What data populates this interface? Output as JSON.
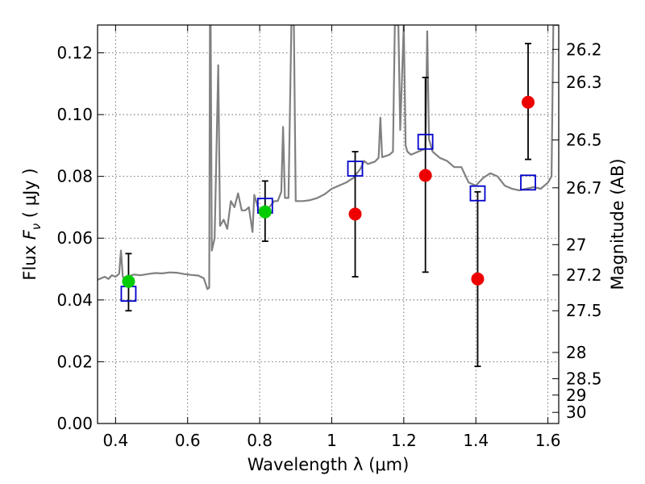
{
  "chart_data": {
    "type": "scatter",
    "xlabel": "Wavelength  λ (μm)",
    "ylabel": "Flux  F_ν  ( μJy )",
    "ylabel_parts": {
      "lead": "Flux ",
      "symbol": "F",
      "subscript": "ν",
      "units": " (  μJy )"
    },
    "y2label": "Magnitude (AB)",
    "xlim": [
      0.35,
      1.63
    ],
    "ylim": [
      0.0,
      0.129
    ],
    "grid": true,
    "x_ticks": [
      {
        "value": 0.4,
        "label": "0.4"
      },
      {
        "value": 0.6,
        "label": "0.6"
      },
      {
        "value": 0.8,
        "label": "0.8"
      },
      {
        "value": 1.0,
        "label": "1"
      },
      {
        "value": 1.2,
        "label": "1.2"
      },
      {
        "value": 1.4,
        "label": "1.4"
      },
      {
        "value": 1.6,
        "label": "1.6"
      }
    ],
    "y_ticks": [
      {
        "value": 0.0,
        "label": "0.00"
      },
      {
        "value": 0.02,
        "label": "0.02"
      },
      {
        "value": 0.04,
        "label": "0.04"
      },
      {
        "value": 0.06,
        "label": "0.06"
      },
      {
        "value": 0.08,
        "label": "0.08"
      },
      {
        "value": 0.1,
        "label": "0.10"
      },
      {
        "value": 0.12,
        "label": "0.12"
      }
    ],
    "y2_ticks": [
      {
        "label": "26.2",
        "flux": 0.1211
      },
      {
        "label": "26.3",
        "flux": 0.1104
      },
      {
        "label": "26.5",
        "flux": 0.0918
      },
      {
        "label": "26.7",
        "flux": 0.0763
      },
      {
        "label": "27",
        "flux": 0.0579
      },
      {
        "label": "27.2",
        "flux": 0.0481
      },
      {
        "label": "27.5",
        "flux": 0.0365
      },
      {
        "label": "28",
        "flux": 0.023
      },
      {
        "label": "28.5",
        "flux": 0.0145
      },
      {
        "label": "29",
        "flux": 0.0092
      },
      {
        "label": "30",
        "flux": 0.0036
      }
    ],
    "series": [
      {
        "kind": "spectrum",
        "color": "#808080",
        "points": [
          [
            0.35,
            0.0465
          ],
          [
            0.36,
            0.047
          ],
          [
            0.37,
            0.0475
          ],
          [
            0.38,
            0.0468
          ],
          [
            0.39,
            0.048
          ],
          [
            0.4,
            0.0475
          ],
          [
            0.41,
            0.0485
          ],
          [
            0.415,
            0.056
          ],
          [
            0.42,
            0.0475
          ],
          [
            0.43,
            0.046
          ],
          [
            0.44,
            0.0478
          ],
          [
            0.45,
            0.0482
          ],
          [
            0.47,
            0.048
          ],
          [
            0.49,
            0.0484
          ],
          [
            0.51,
            0.0487
          ],
          [
            0.53,
            0.0486
          ],
          [
            0.55,
            0.0489
          ],
          [
            0.57,
            0.0488
          ],
          [
            0.59,
            0.0484
          ],
          [
            0.61,
            0.0481
          ],
          [
            0.63,
            0.0479
          ],
          [
            0.645,
            0.047
          ],
          [
            0.655,
            0.0435
          ],
          [
            0.66,
            0.044
          ],
          [
            0.662,
            0.129
          ],
          [
            0.664,
            0.129
          ],
          [
            0.667,
            0.056
          ],
          [
            0.675,
            0.06
          ],
          [
            0.685,
            0.116
          ],
          [
            0.69,
            0.064
          ],
          [
            0.7,
            0.066
          ],
          [
            0.71,
            0.063
          ],
          [
            0.72,
            0.072
          ],
          [
            0.73,
            0.07
          ],
          [
            0.74,
            0.0745
          ],
          [
            0.75,
            0.069
          ],
          [
            0.76,
            0.069
          ],
          [
            0.77,
            0.07
          ],
          [
            0.78,
            0.062
          ],
          [
            0.785,
            0.074
          ],
          [
            0.8,
            0.068
          ],
          [
            0.82,
            0.069
          ],
          [
            0.84,
            0.072
          ],
          [
            0.85,
            0.072
          ],
          [
            0.86,
            0.075
          ],
          [
            0.865,
            0.096
          ],
          [
            0.87,
            0.073
          ],
          [
            0.88,
            0.073
          ],
          [
            0.888,
            0.129
          ],
          [
            0.895,
            0.129
          ],
          [
            0.9,
            0.072
          ],
          [
            0.92,
            0.072
          ],
          [
            0.94,
            0.0723
          ],
          [
            0.96,
            0.073
          ],
          [
            0.98,
            0.0742
          ],
          [
            1.0,
            0.076
          ],
          [
            1.02,
            0.077
          ],
          [
            1.04,
            0.078
          ],
          [
            1.06,
            0.0795
          ],
          [
            1.08,
            0.0825
          ],
          [
            1.09,
            0.085
          ],
          [
            1.1,
            0.084
          ],
          [
            1.12,
            0.0848
          ],
          [
            1.13,
            0.086
          ],
          [
            1.135,
            0.099
          ],
          [
            1.14,
            0.0862
          ],
          [
            1.16,
            0.087
          ],
          [
            1.17,
            0.088
          ],
          [
            1.175,
            0.129
          ],
          [
            1.185,
            0.129
          ],
          [
            1.19,
            0.095
          ],
          [
            1.2,
            0.129
          ],
          [
            1.205,
            0.09
          ],
          [
            1.21,
            0.088
          ],
          [
            1.22,
            0.087
          ],
          [
            1.24,
            0.088
          ],
          [
            1.26,
            0.089
          ],
          [
            1.265,
            0.127
          ],
          [
            1.27,
            0.092
          ],
          [
            1.28,
            0.088
          ],
          [
            1.3,
            0.086
          ],
          [
            1.32,
            0.085
          ],
          [
            1.34,
            0.083
          ],
          [
            1.36,
            0.083
          ],
          [
            1.38,
            0.078
          ],
          [
            1.4,
            0.077
          ],
          [
            1.42,
            0.0795
          ],
          [
            1.44,
            0.081
          ],
          [
            1.46,
            0.08
          ],
          [
            1.48,
            0.077
          ],
          [
            1.5,
            0.076
          ],
          [
            1.52,
            0.0755
          ],
          [
            1.54,
            0.076
          ],
          [
            1.56,
            0.0765
          ],
          [
            1.58,
            0.076
          ],
          [
            1.6,
            0.078
          ],
          [
            1.61,
            0.08
          ],
          [
            1.615,
            0.129
          ],
          [
            1.63,
            0.129
          ]
        ]
      },
      {
        "kind": "model-squares",
        "color": "#0000cc",
        "points": [
          [
            0.436,
            0.042
          ],
          [
            0.815,
            0.0705
          ],
          [
            1.065,
            0.0825
          ],
          [
            1.26,
            0.0912
          ],
          [
            1.405,
            0.0745
          ],
          [
            1.545,
            0.078
          ]
        ]
      },
      {
        "kind": "green-points",
        "color": "#00cc00",
        "points": [
          {
            "x": 0.436,
            "y": 0.046,
            "err_low": 0.0365,
            "err_high": 0.055
          },
          {
            "x": 0.815,
            "y": 0.0685,
            "err_low": 0.059,
            "err_high": 0.0785
          }
        ]
      },
      {
        "kind": "red-points",
        "color": "#ee0000",
        "points": [
          {
            "x": 1.065,
            "y": 0.0678,
            "err_low": 0.0475,
            "err_high": 0.088
          },
          {
            "x": 1.26,
            "y": 0.0803,
            "err_low": 0.049,
            "err_high": 0.112
          },
          {
            "x": 1.405,
            "y": 0.0468,
            "err_low": 0.0185,
            "err_high": 0.075
          },
          {
            "x": 1.545,
            "y": 0.104,
            "err_low": 0.0855,
            "err_high": 0.123
          }
        ]
      }
    ]
  }
}
